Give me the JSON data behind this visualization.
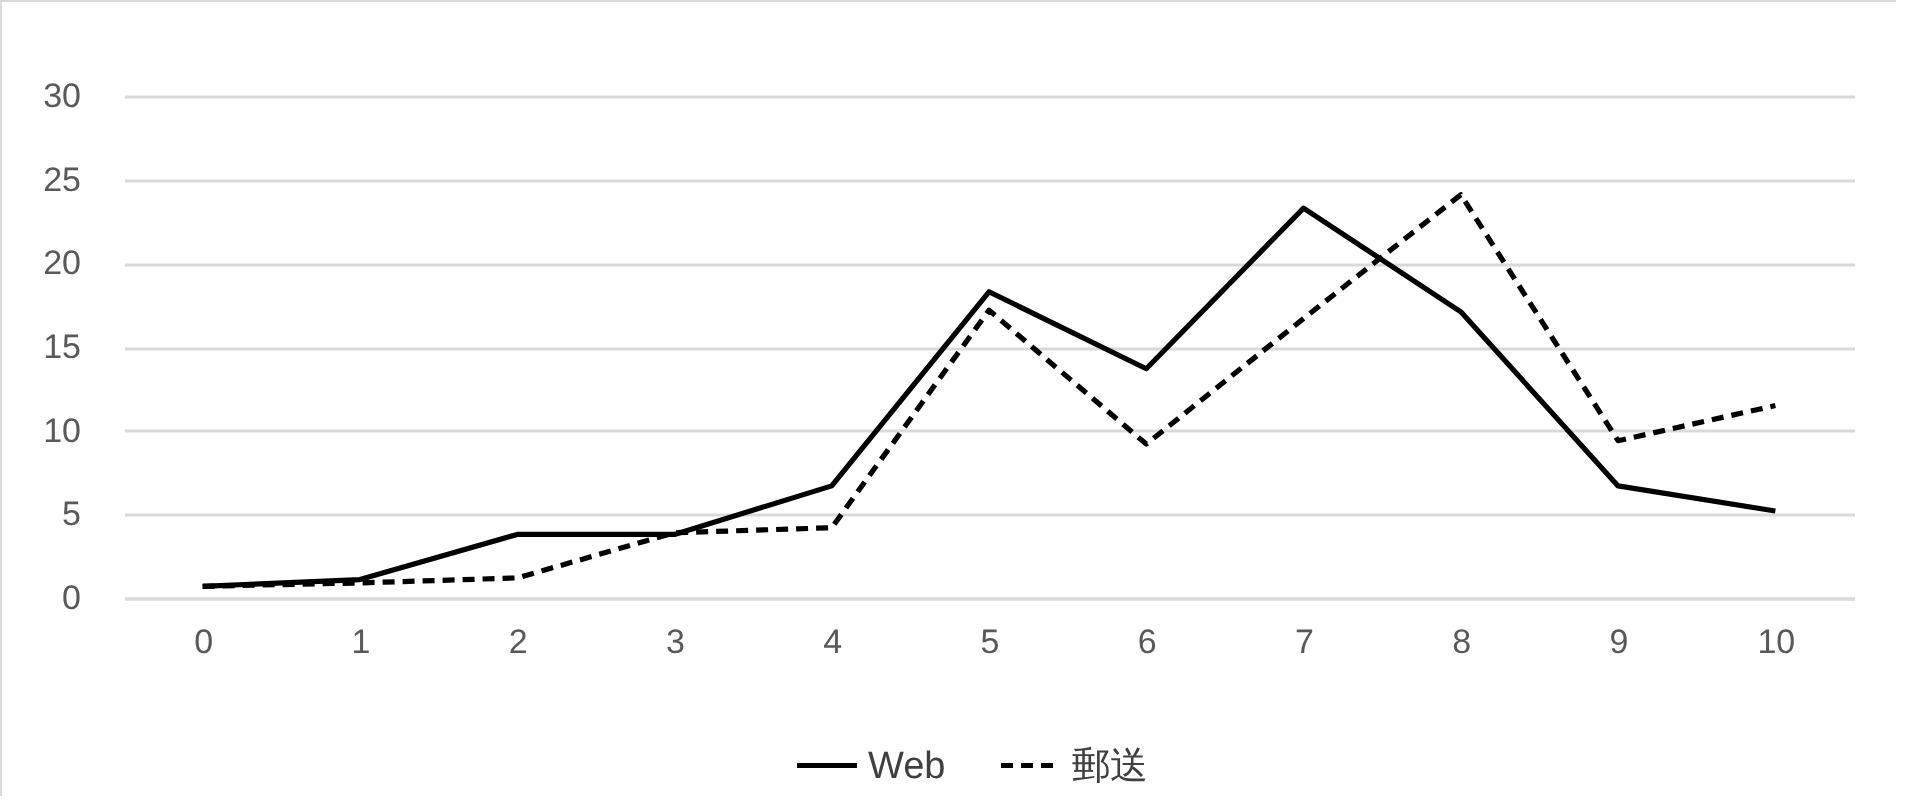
{
  "chart_data": {
    "type": "line",
    "categories": [
      "0",
      "1",
      "2",
      "3",
      "4",
      "5",
      "6",
      "7",
      "8",
      "9",
      "10"
    ],
    "series": [
      {
        "name": "Web",
        "color": "#000000",
        "line_style": "solid",
        "values": [
          0.7,
          1.1,
          3.8,
          3.8,
          6.7,
          18.3,
          13.7,
          23.3,
          17.1,
          6.7,
          5.2
        ]
      },
      {
        "name": "郵送",
        "color": "#000000",
        "line_style": "dashed",
        "values": [
          0.7,
          0.9,
          1.2,
          3.9,
          4.2,
          17.2,
          9.2,
          16.7,
          24.1,
          9.4,
          11.5
        ]
      }
    ],
    "ylim": [
      0,
      30
    ],
    "yticks": [
      0,
      5,
      10,
      15,
      20,
      25,
      30
    ],
    "grid": "y",
    "legend": "bottom",
    "marker": "none"
  }
}
